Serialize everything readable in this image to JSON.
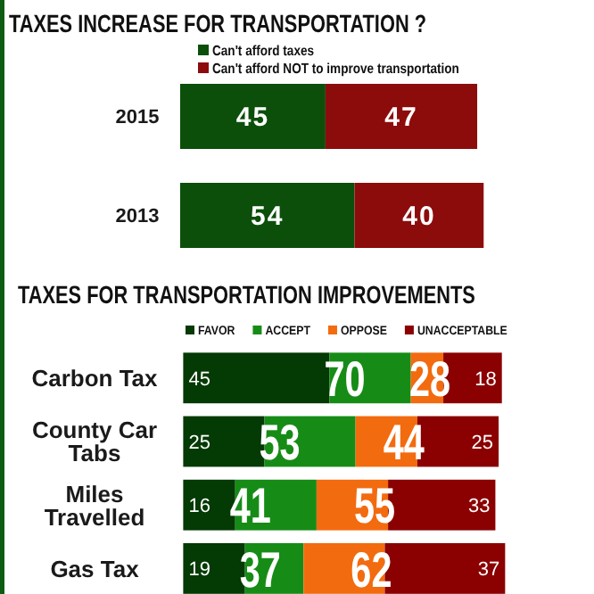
{
  "chart_data": [
    {
      "type": "bar",
      "title": "TAXES INCREASE FOR TRANSPORTATION ?",
      "orientation": "horizontal",
      "stacked": true,
      "categories": [
        "2015",
        "2013"
      ],
      "series": [
        {
          "name": "Can't afford taxes",
          "color": "#0b4f0b",
          "values": [
            45,
            54
          ]
        },
        {
          "name": "Can't afford NOT to improve transportation",
          "color": "#8c0c0c",
          "values": [
            47,
            40
          ]
        }
      ],
      "data_labels": true,
      "legend": "top",
      "tick_labels": "y"
    },
    {
      "type": "bar",
      "title": "TAXES FOR TRANSPORTATION IMPROVEMENTS",
      "orientation": "horizontal",
      "stacked": true,
      "categories": [
        "Carbon Tax",
        "County Car Tabs",
        "Miles Travelled",
        "Gas Tax"
      ],
      "series": [
        {
          "name": "FAVOR",
          "color": "#043a04",
          "values": [
            45,
            25,
            16,
            19
          ],
          "data_labels": true
        },
        {
          "name": "ACCEPT",
          "color": "#168c16",
          "values": [
            25,
            28,
            25,
            18
          ]
        },
        {
          "name": "OPPOSE",
          "color": "#f26b0f",
          "values": [
            10,
            19,
            22,
            25
          ]
        },
        {
          "name": "UNACCEPTABLE",
          "color": "#8b0000",
          "values": [
            18,
            25,
            33,
            37
          ],
          "data_labels": true
        }
      ],
      "annotations": [
        {
          "text": "70",
          "x": 45,
          "y": "Carbon Tax"
        },
        {
          "text": "53",
          "x": 25,
          "y": "County Car Tabs"
        },
        {
          "text": "41",
          "x": 16,
          "y": "Miles Travelled"
        },
        {
          "text": "37",
          "x": 19,
          "y": "Gas Tax"
        },
        {
          "text": "28",
          "x": 80,
          "y": "Carbon Tax"
        },
        {
          "text": "44",
          "x": 72,
          "y": "County Car Tabs"
        },
        {
          "text": "55",
          "x": 63,
          "y": "Miles Travelled"
        },
        {
          "text": "62",
          "x": 62,
          "y": "Gas Tax"
        }
      ],
      "legend": "top",
      "tick_labels": "y"
    }
  ]
}
